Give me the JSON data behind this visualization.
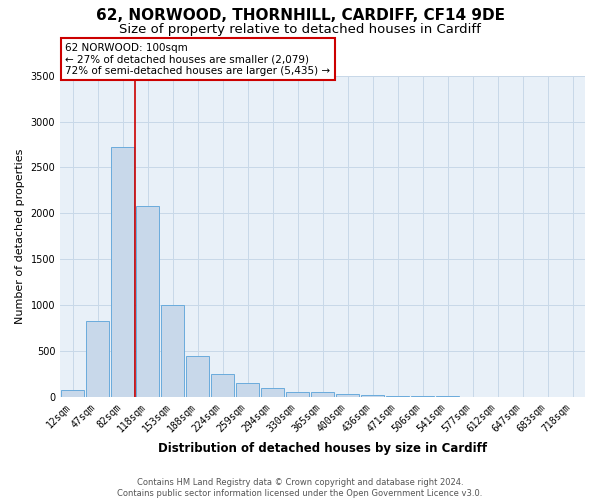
{
  "title1": "62, NORWOOD, THORNHILL, CARDIFF, CF14 9DE",
  "title2": "Size of property relative to detached houses in Cardiff",
  "xlabel": "Distribution of detached houses by size in Cardiff",
  "ylabel": "Number of detached properties",
  "categories": [
    "12sqm",
    "47sqm",
    "82sqm",
    "118sqm",
    "153sqm",
    "188sqm",
    "224sqm",
    "259sqm",
    "294sqm",
    "330sqm",
    "365sqm",
    "400sqm",
    "436sqm",
    "471sqm",
    "506sqm",
    "541sqm",
    "577sqm",
    "612sqm",
    "647sqm",
    "683sqm",
    "718sqm"
  ],
  "values": [
    75,
    825,
    2725,
    2075,
    1000,
    450,
    250,
    155,
    100,
    55,
    50,
    35,
    25,
    8,
    5,
    5,
    3,
    2,
    1,
    1,
    1
  ],
  "bar_color": "#c8d8ea",
  "bar_edge_color": "#6aabdc",
  "red_line_x": 2.48,
  "annotation_text": "62 NORWOOD: 100sqm\n← 27% of detached houses are smaller (2,079)\n72% of semi-detached houses are larger (5,435) →",
  "annotation_box_color": "#ffffff",
  "annotation_box_edge": "#cc0000",
  "red_line_color": "#cc0000",
  "ylim": [
    0,
    3500
  ],
  "yticks": [
    0,
    500,
    1000,
    1500,
    2000,
    2500,
    3000,
    3500
  ],
  "grid_color": "#c8d8e8",
  "background_color": "#e8f0f8",
  "footer": "Contains HM Land Registry data © Crown copyright and database right 2024.\nContains public sector information licensed under the Open Government Licence v3.0.",
  "title1_fontsize": 11,
  "title2_fontsize": 9.5,
  "axis_label_fontsize": 8.5,
  "tick_fontsize": 7,
  "ylabel_fontsize": 8
}
